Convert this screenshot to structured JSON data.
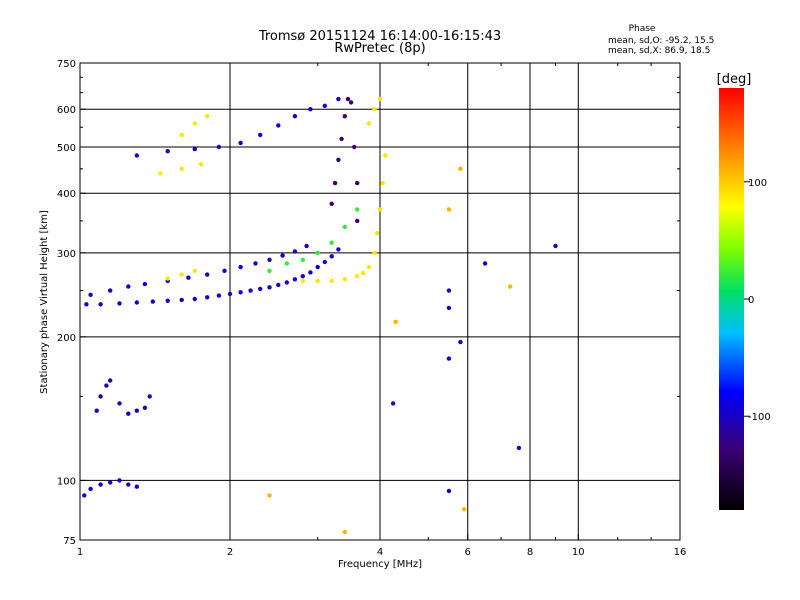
{
  "chart_data": {
    "type": "scatter",
    "title": "Tromsø 20151124 16:14:00-16:15:43",
    "subtitle": "RwPretec (8p)",
    "xlabel": "Frequency [MHz]",
    "ylabel": "Stationary phase Virtual Height [km]",
    "x_scale": "log",
    "y_scale": "log",
    "xlim": [
      1,
      16
    ],
    "ylim": [
      75,
      750
    ],
    "grid": true,
    "x_ticks": [
      1,
      2,
      4,
      6,
      8,
      10,
      16
    ],
    "x_minor_ticks": [
      3,
      5,
      7,
      9,
      12,
      14
    ],
    "y_ticks": [
      75,
      100,
      200,
      300,
      400,
      500,
      600,
      750
    ],
    "y_minor_ticks": [
      150,
      250,
      350,
      450,
      550,
      650,
      700
    ],
    "phase_info": {
      "title": "Phase",
      "line_o": "mean, sd,O: -95.2, 15.5",
      "line_x": "mean, sd,X:  86.9, 18.5"
    },
    "colorbar": {
      "label": "[deg]",
      "range": [
        -180,
        180
      ],
      "ticks": [
        {
          "value": 100,
          "label": "100"
        },
        {
          "value": 0,
          "label": "0"
        },
        {
          "value": -100,
          "label": "-100"
        }
      ]
    },
    "series": [
      {
        "trace": "F-trace-O-low",
        "phase": -100,
        "points": [
          [
            1.03,
            234
          ],
          [
            1.1,
            234
          ],
          [
            1.2,
            235
          ],
          [
            1.3,
            236
          ],
          [
            1.4,
            237
          ],
          [
            1.5,
            238
          ],
          [
            1.6,
            239
          ],
          [
            1.7,
            240
          ],
          [
            1.8,
            242
          ],
          [
            1.9,
            244
          ],
          [
            2.0,
            246
          ],
          [
            2.1,
            248
          ],
          [
            2.2,
            250
          ],
          [
            2.3,
            252
          ],
          [
            2.4,
            254
          ],
          [
            2.5,
            257
          ],
          [
            2.6,
            260
          ],
          [
            2.7,
            264
          ],
          [
            2.8,
            268
          ],
          [
            2.9,
            273
          ],
          [
            3.0,
            280
          ],
          [
            3.1,
            287
          ],
          [
            3.2,
            295
          ],
          [
            3.3,
            305
          ]
        ]
      },
      {
        "trace": "F-trace-O-upper",
        "phase": -100,
        "points": [
          [
            1.05,
            245
          ],
          [
            1.15,
            250
          ],
          [
            1.25,
            255
          ],
          [
            1.35,
            258
          ],
          [
            1.5,
            262
          ],
          [
            1.65,
            266
          ],
          [
            1.8,
            270
          ],
          [
            1.95,
            275
          ],
          [
            2.1,
            280
          ],
          [
            2.25,
            285
          ],
          [
            2.4,
            290
          ],
          [
            2.55,
            296
          ],
          [
            2.7,
            302
          ],
          [
            2.85,
            310
          ]
        ]
      },
      {
        "trace": "F-trace-O-yellow",
        "phase": 90,
        "points": [
          [
            1.5,
            265
          ],
          [
            1.6,
            270
          ],
          [
            1.7,
            275
          ],
          [
            2.8,
            262
          ],
          [
            3.0,
            262
          ],
          [
            3.2,
            262
          ],
          [
            3.4,
            264
          ],
          [
            3.6,
            268
          ],
          [
            3.7,
            272
          ],
          [
            3.8,
            280
          ],
          [
            3.9,
            300
          ],
          [
            3.95,
            330
          ],
          [
            4.0,
            370
          ],
          [
            4.05,
            420
          ],
          [
            4.1,
            480
          ]
        ]
      },
      {
        "trace": "F-trace-O-cyan",
        "phase": 20,
        "points": [
          [
            2.4,
            275
          ],
          [
            2.6,
            285
          ],
          [
            2.8,
            290
          ],
          [
            3.0,
            300
          ],
          [
            3.2,
            315
          ],
          [
            3.4,
            340
          ],
          [
            3.6,
            370
          ]
        ]
      },
      {
        "trace": "F-trace-vertical",
        "phase": -130,
        "points": [
          [
            3.2,
            380
          ],
          [
            3.25,
            420
          ],
          [
            3.3,
            470
          ],
          [
            3.35,
            520
          ],
          [
            3.4,
            580
          ],
          [
            3.45,
            630
          ],
          [
            3.5,
            620
          ],
          [
            3.55,
            500
          ],
          [
            3.6,
            420
          ],
          [
            3.6,
            350
          ]
        ]
      },
      {
        "trace": "multi-hop-500",
        "phase": -100,
        "points": [
          [
            1.3,
            480
          ],
          [
            1.5,
            490
          ],
          [
            1.7,
            495
          ],
          [
            1.9,
            500
          ],
          [
            2.1,
            510
          ],
          [
            2.3,
            530
          ],
          [
            2.5,
            555
          ],
          [
            2.7,
            580
          ],
          [
            2.9,
            600
          ],
          [
            3.1,
            610
          ],
          [
            3.3,
            630
          ]
        ]
      },
      {
        "trace": "multi-hop-yellow",
        "phase": 90,
        "points": [
          [
            1.45,
            440
          ],
          [
            1.6,
            450
          ],
          [
            1.75,
            460
          ],
          [
            1.6,
            530
          ],
          [
            1.7,
            560
          ],
          [
            1.8,
            580
          ],
          [
            3.8,
            560
          ],
          [
            3.9,
            600
          ],
          [
            4.0,
            630
          ]
        ]
      },
      {
        "trace": "E-trace-low",
        "phase": -100,
        "points": [
          [
            1.02,
            93
          ],
          [
            1.05,
            96
          ],
          [
            1.1,
            98
          ],
          [
            1.15,
            99
          ],
          [
            1.2,
            100
          ],
          [
            1.25,
            98
          ],
          [
            1.3,
            97
          ]
        ]
      },
      {
        "trace": "E-trace-mid",
        "phase": -110,
        "points": [
          [
            1.08,
            140
          ],
          [
            1.1,
            150
          ],
          [
            1.13,
            158
          ],
          [
            1.15,
            162
          ],
          [
            1.2,
            145
          ],
          [
            1.25,
            138
          ],
          [
            1.3,
            140
          ],
          [
            1.35,
            142
          ],
          [
            1.38,
            150
          ]
        ]
      },
      {
        "trace": "scattered",
        "phase": -100,
        "points": [
          [
            5.5,
            180
          ],
          [
            5.5,
            230
          ],
          [
            5.5,
            250
          ],
          [
            5.8,
            195
          ],
          [
            6.5,
            285
          ],
          [
            7.6,
            117
          ],
          [
            9.0,
            310
          ],
          [
            4.25,
            145
          ],
          [
            5.5,
            95
          ]
        ]
      },
      {
        "trace": "scattered-warm",
        "phase": 110,
        "points": [
          [
            4.3,
            215
          ],
          [
            5.5,
            370
          ],
          [
            5.8,
            450
          ],
          [
            7.3,
            255
          ],
          [
            2.4,
            93
          ],
          [
            3.4,
            78
          ],
          [
            5.9,
            87
          ]
        ]
      }
    ]
  }
}
